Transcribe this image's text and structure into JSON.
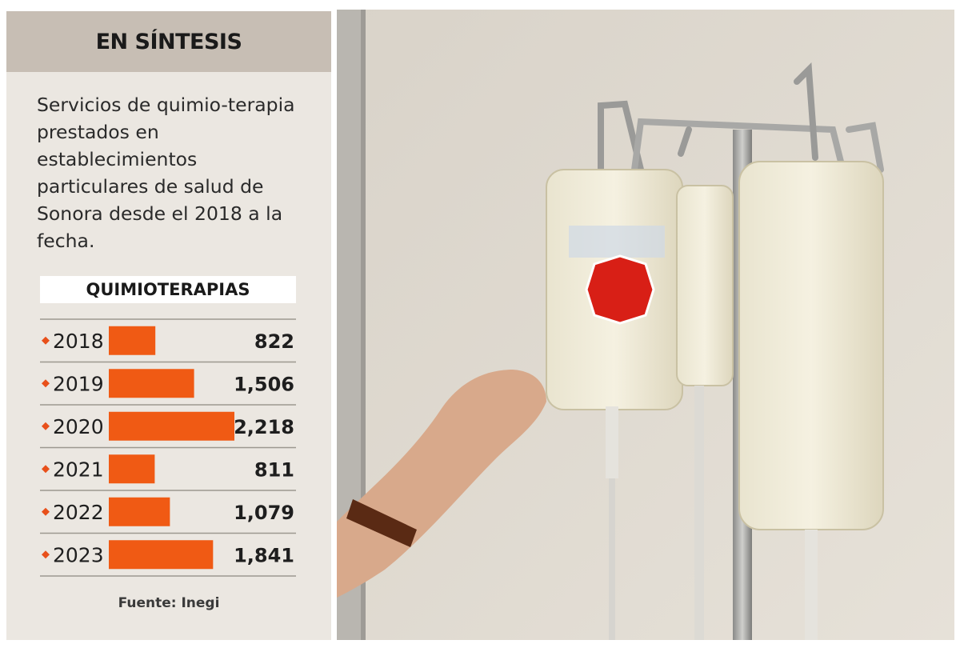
{
  "header": {
    "title": "EN SÍNTESIS"
  },
  "summary": {
    "text": "Servicios de quimio-terapia prestados en establecimientos particulares de salud de Sonora desde el 2018 a la fecha."
  },
  "source": {
    "text": "Fuente: Inegi"
  },
  "colors": {
    "bar": "#f05a14",
    "bullet": "#e8501a",
    "header_bg": "#c7beb4",
    "panel_bg": "#ebe7e1"
  },
  "chart_data": {
    "type": "bar",
    "orientation": "horizontal",
    "title": "QUIMIOTERAPIAS",
    "categories": [
      "2018",
      "2019",
      "2020",
      "2021",
      "2022",
      "2023"
    ],
    "values": [
      822,
      1506,
      2218,
      811,
      1079,
      1841
    ],
    "value_labels": [
      "822",
      "1,506",
      "2,218",
      "811",
      "1,079",
      "1,841"
    ],
    "xlim": [
      0,
      2218
    ]
  }
}
